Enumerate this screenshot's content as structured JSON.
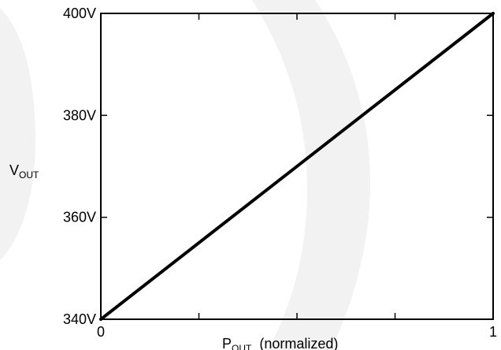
{
  "chart_data": {
    "type": "line",
    "title": "",
    "xlabel": {
      "main": "P",
      "sub": "OUT",
      "suffix": "(normalized)"
    },
    "ylabel": {
      "main": "V",
      "sub": "OUT"
    },
    "xlim": [
      0,
      1
    ],
    "ylim": [
      340,
      400
    ],
    "x_ticks": [
      0,
      0.25,
      0.5,
      0.75,
      1
    ],
    "x_tick_labels": [
      {
        "value": 0,
        "label": "0"
      },
      {
        "value": 1,
        "label": "1"
      }
    ],
    "y_ticks": [
      {
        "value": 340,
        "label": "340V"
      },
      {
        "value": 360,
        "label": "360V"
      },
      {
        "value": 380,
        "label": "380V"
      },
      {
        "value": 400,
        "label": "400V"
      }
    ],
    "grid": false,
    "series": [
      {
        "x": [
          0,
          1
        ],
        "y": [
          340,
          400
        ]
      }
    ],
    "colors": {
      "line": "#000000",
      "axis": "#000000",
      "watermark": "#f2f2f2"
    }
  }
}
